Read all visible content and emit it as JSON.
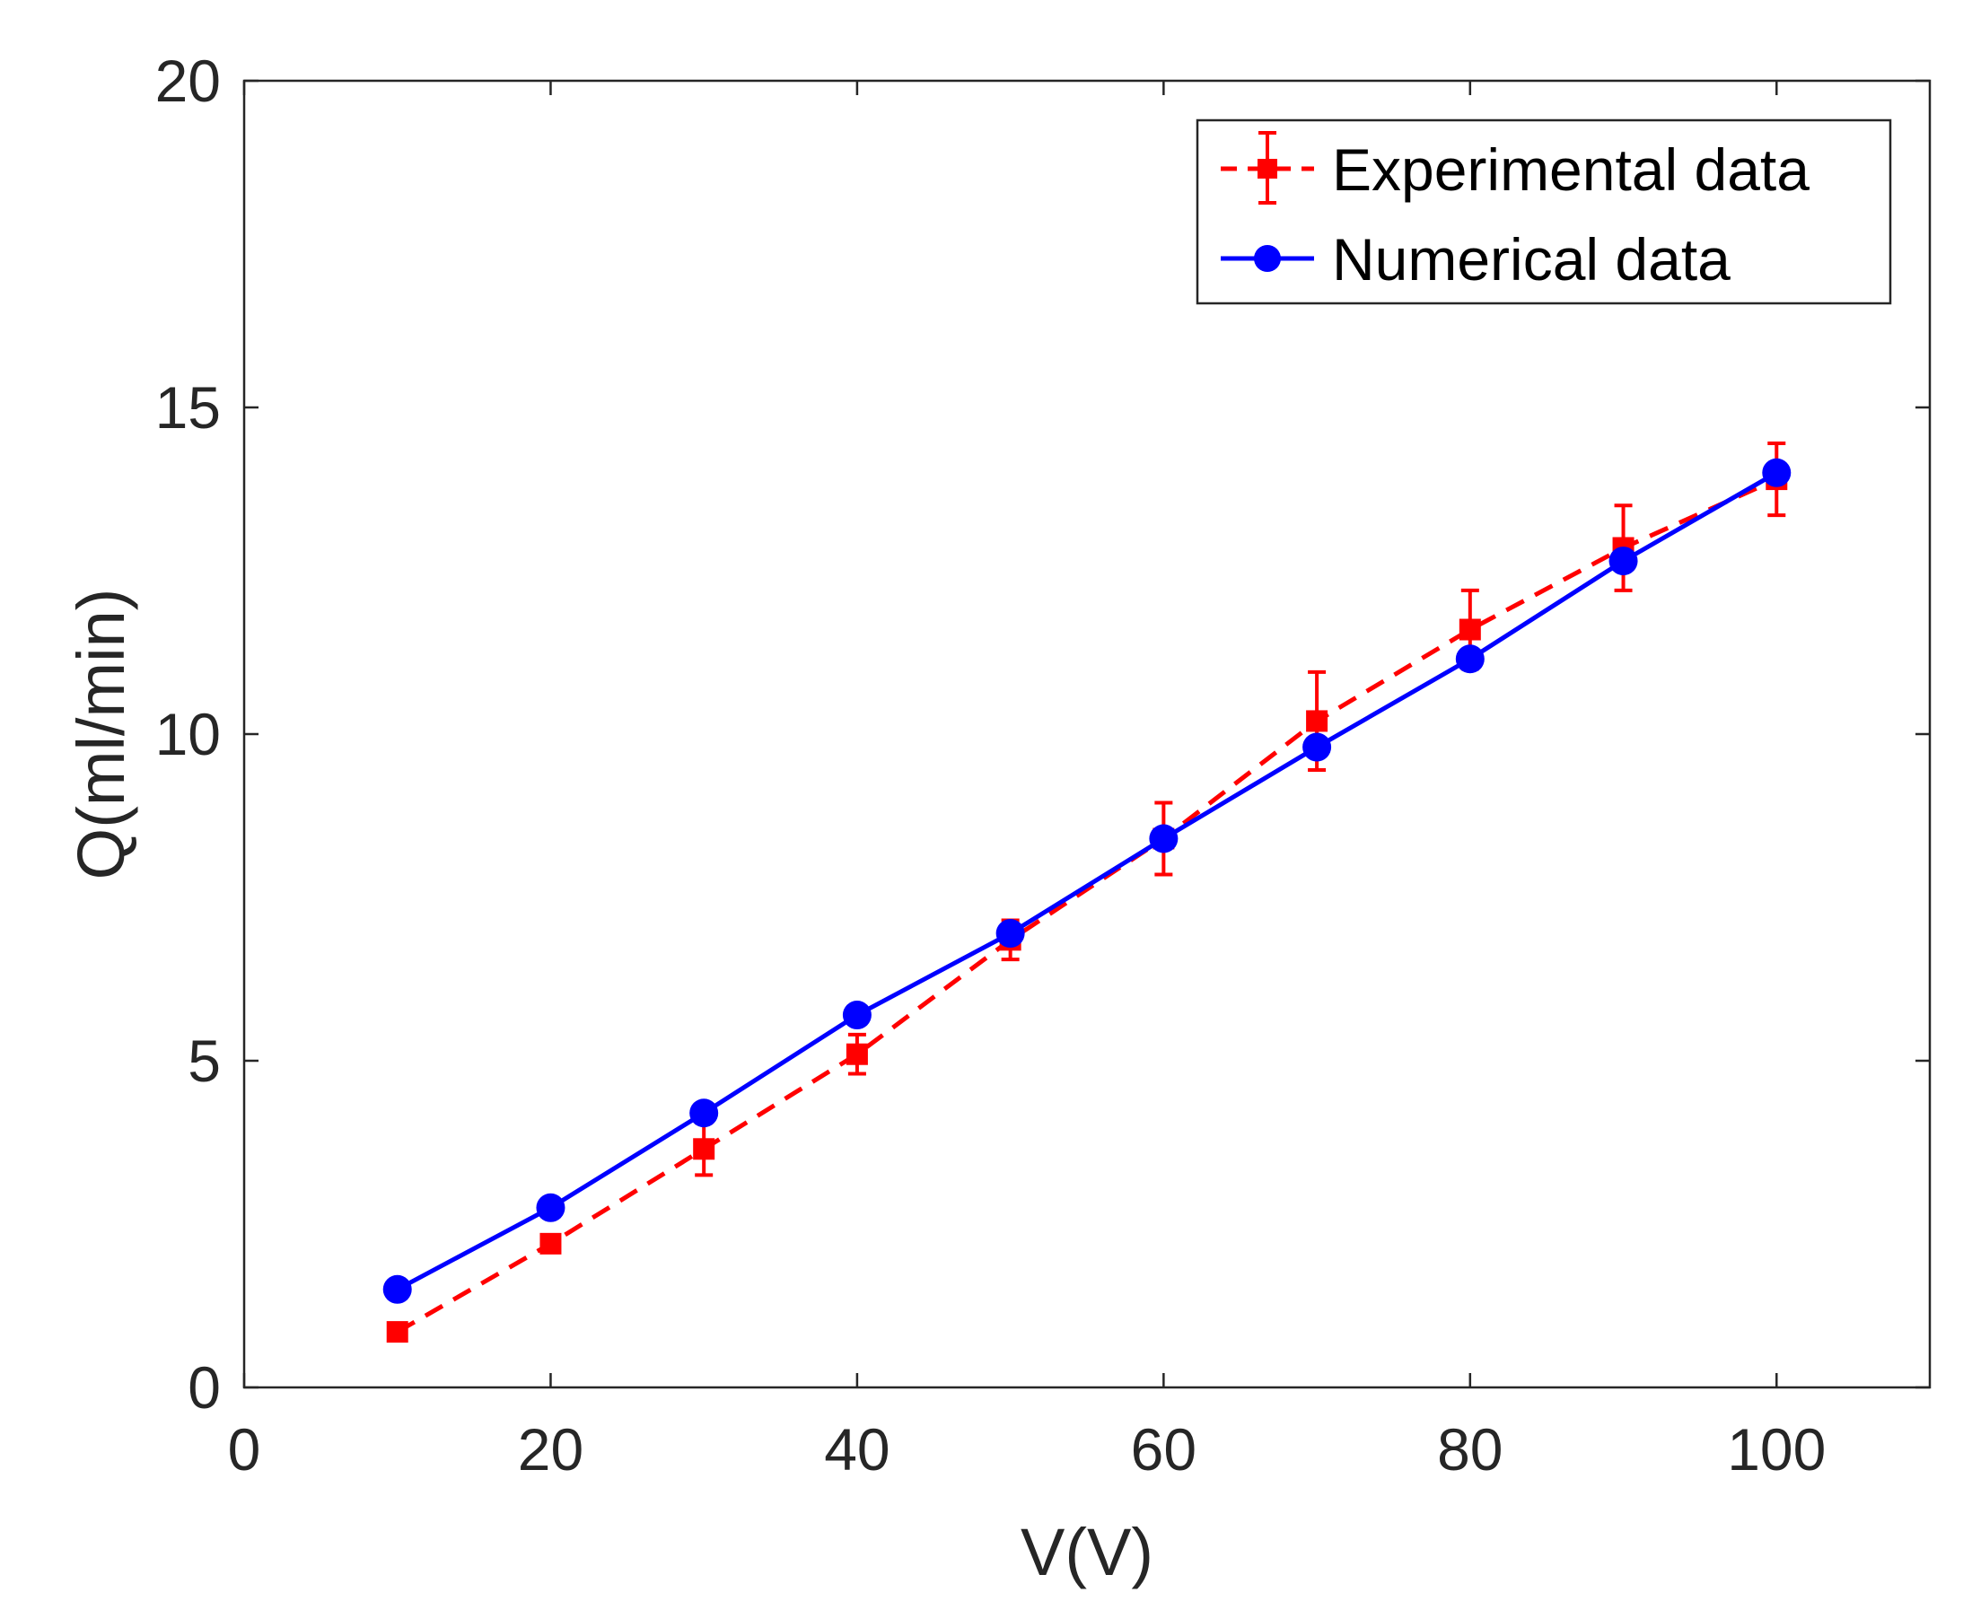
{
  "chart_data": {
    "type": "line",
    "title": "",
    "xlabel": "V(V)",
    "ylabel": "Q(ml/min)",
    "xlim": [
      0,
      110
    ],
    "ylim": [
      0,
      20
    ],
    "xticks": [
      0,
      20,
      40,
      60,
      80,
      100
    ],
    "yticks": [
      0,
      5,
      10,
      15,
      20
    ],
    "xtick_labels": [
      "0",
      "20",
      "40",
      "60",
      "80",
      "100"
    ],
    "ytick_labels": [
      "0",
      "5",
      "10",
      "15",
      "20"
    ],
    "grid": false,
    "legend_position": "top-right",
    "series": [
      {
        "name": "Experimental data",
        "style": "dashed",
        "marker": "square",
        "color": "#ff0000",
        "x": [
          10,
          20,
          30,
          40,
          50,
          60,
          70,
          80,
          90,
          100
        ],
        "y": [
          0.85,
          2.2,
          3.65,
          5.1,
          6.85,
          8.4,
          10.2,
          11.6,
          12.85,
          13.9
        ],
        "error": [
          0,
          0,
          0.4,
          0.3,
          0.3,
          0.55,
          0.75,
          0.6,
          0.65,
          0.55
        ]
      },
      {
        "name": "Numerical data",
        "style": "solid",
        "marker": "circle",
        "color": "#0000ff",
        "x": [
          10,
          20,
          30,
          40,
          50,
          60,
          70,
          80,
          90,
          100
        ],
        "y": [
          1.5,
          2.75,
          4.2,
          5.7,
          6.95,
          8.4,
          9.8,
          11.15,
          12.65,
          14.0
        ]
      }
    ]
  }
}
